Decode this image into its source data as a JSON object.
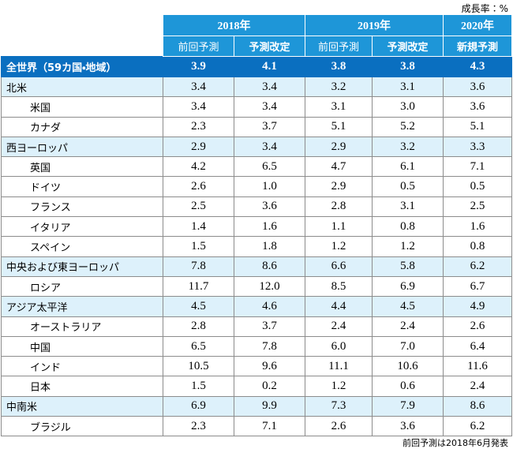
{
  "unit": "成長率：%",
  "header": {
    "year_groups": [
      {
        "year": "2018年",
        "columns": [
          "前回予測",
          "予測改定"
        ]
      },
      {
        "year": "2019年",
        "columns": [
          "前回予測",
          "予測改定"
        ]
      },
      {
        "year": "2020年",
        "columns": [
          "新規予測"
        ]
      }
    ]
  },
  "world": {
    "label": "全世界（59カ国・地域）",
    "values": [
      "3.9",
      "4.1",
      "3.8",
      "3.8",
      "4.3"
    ]
  },
  "regions": [
    {
      "label": "北米",
      "values": [
        "3.4",
        "3.4",
        "3.2",
        "3.1",
        "3.6"
      ],
      "countries": [
        {
          "label": "米国",
          "values": [
            "3.4",
            "3.4",
            "3.1",
            "3.0",
            "3.6"
          ]
        },
        {
          "label": "カナダ",
          "values": [
            "2.3",
            "3.7",
            "5.1",
            "5.2",
            "5.1"
          ]
        }
      ]
    },
    {
      "label": "西ヨーロッパ",
      "values": [
        "2.9",
        "3.4",
        "2.9",
        "3.2",
        "3.3"
      ],
      "countries": [
        {
          "label": "英国",
          "values": [
            "4.2",
            "6.5",
            "4.7",
            "6.1",
            "7.1"
          ]
        },
        {
          "label": "ドイツ",
          "values": [
            "2.6",
            "1.0",
            "2.9",
            "0.5",
            "0.5"
          ]
        },
        {
          "label": "フランス",
          "values": [
            "2.5",
            "3.6",
            "2.8",
            "3.1",
            "2.5"
          ]
        },
        {
          "label": "イタリア",
          "values": [
            "1.4",
            "1.6",
            "1.1",
            "0.8",
            "1.6"
          ]
        },
        {
          "label": "スペイン",
          "values": [
            "1.5",
            "1.8",
            "1.2",
            "1.2",
            "0.8"
          ]
        }
      ]
    },
    {
      "label": "中央および東ヨーロッパ",
      "values": [
        "7.8",
        "8.6",
        "6.6",
        "5.8",
        "6.2"
      ],
      "countries": [
        {
          "label": "ロシア",
          "values": [
            "11.7",
            "12.0",
            "8.5",
            "6.9",
            "6.7"
          ]
        }
      ]
    },
    {
      "label": "アジア太平洋",
      "values": [
        "4.5",
        "4.6",
        "4.4",
        "4.5",
        "4.9"
      ],
      "countries": [
        {
          "label": "オーストラリア",
          "values": [
            "2.8",
            "3.7",
            "2.4",
            "2.4",
            "2.6"
          ]
        },
        {
          "label": "中国",
          "values": [
            "6.5",
            "7.8",
            "6.0",
            "7.0",
            "6.4"
          ]
        },
        {
          "label": "インド",
          "values": [
            "10.5",
            "9.6",
            "11.1",
            "10.6",
            "11.6"
          ]
        },
        {
          "label": "日本",
          "values": [
            "1.5",
            "0.2",
            "1.2",
            "0.6",
            "2.4"
          ]
        }
      ]
    },
    {
      "label": "中南米",
      "values": [
        "6.9",
        "9.9",
        "7.3",
        "7.9",
        "8.6"
      ],
      "countries": [
        {
          "label": "ブラジル",
          "values": [
            "2.3",
            "7.1",
            "2.6",
            "3.6",
            "6.2"
          ]
        }
      ]
    }
  ],
  "footnote": "前回予測は2018年6月発表"
}
